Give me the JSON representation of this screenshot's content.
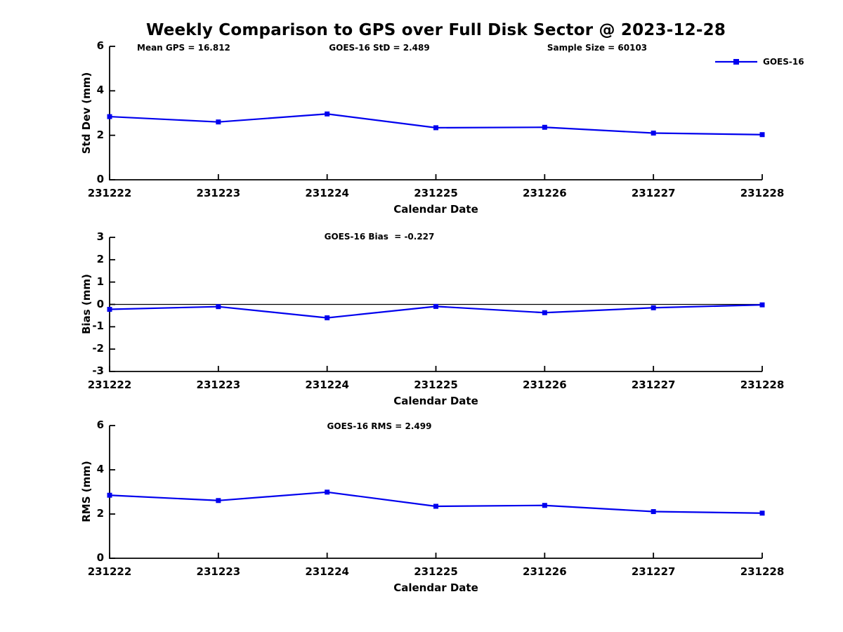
{
  "figure": {
    "title": "Weekly Comparison to GPS over Full Disk Sector @ 2023-12-28",
    "annotations": {
      "mean_gps": "Mean GPS = 16.812",
      "std": "GOES-16 StD = 2.489",
      "sample_size": "Sample Size = 60103",
      "bias": "GOES-16 Bias  = -0.227",
      "rms": "GOES-16 RMS = 2.499"
    },
    "legend": {
      "label": "GOES-16",
      "position": "top-right"
    },
    "accent_color": "#0000EE",
    "axis_color": "#000000"
  },
  "chart_data": [
    {
      "type": "line",
      "title": "",
      "ylabel": "Std Dev (mm)",
      "xlabel": "Calendar Date",
      "categories": [
        "231222",
        "231223",
        "231224",
        "231225",
        "231226",
        "231227",
        "231228"
      ],
      "series": [
        {
          "name": "GOES-16",
          "values": [
            2.84,
            2.6,
            2.96,
            2.34,
            2.36,
            2.1,
            2.03
          ]
        }
      ],
      "ylim": [
        0,
        6
      ],
      "yticks": [
        0,
        2,
        4,
        6
      ],
      "zero_line": false,
      "grid": false,
      "legend_position": "top-right"
    },
    {
      "type": "line",
      "title": "GOES-16 Bias  = -0.227",
      "ylabel": "Bias (mm)",
      "xlabel": "Calendar Date",
      "categories": [
        "231222",
        "231223",
        "231224",
        "231225",
        "231226",
        "231227",
        "231228"
      ],
      "series": [
        {
          "name": "GOES-16",
          "values": [
            -0.22,
            -0.1,
            -0.6,
            -0.09,
            -0.37,
            -0.15,
            -0.02
          ]
        }
      ],
      "ylim": [
        -3,
        3
      ],
      "yticks": [
        -3,
        -2,
        -1,
        0,
        1,
        2,
        3
      ],
      "zero_line": true,
      "grid": false
    },
    {
      "type": "line",
      "title": "GOES-16 RMS = 2.499",
      "ylabel": "RMS (mm)",
      "xlabel": "Calendar Date",
      "categories": [
        "231222",
        "231223",
        "231224",
        "231225",
        "231226",
        "231227",
        "231228"
      ],
      "series": [
        {
          "name": "GOES-16",
          "values": [
            2.85,
            2.61,
            2.99,
            2.35,
            2.39,
            2.11,
            2.04
          ]
        }
      ],
      "ylim": [
        0,
        6
      ],
      "yticks": [
        0,
        2,
        4,
        6
      ],
      "zero_line": false,
      "grid": false
    }
  ]
}
